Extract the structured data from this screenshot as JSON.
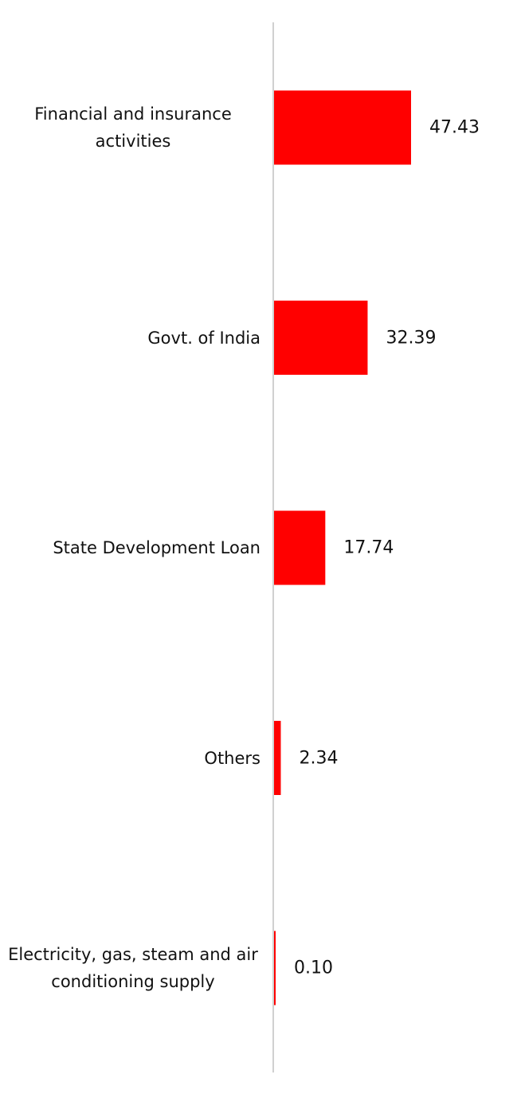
{
  "chart_data": {
    "type": "bar",
    "orientation": "horizontal",
    "categories": [
      "Financial and insurance activities",
      "Govt. of India",
      "State Development Loan",
      "Others",
      "Electricity, gas, steam and air conditioning supply"
    ],
    "values": [
      47.43,
      32.39,
      17.74,
      2.34,
      0.1
    ],
    "value_labels": [
      "47.43",
      "32.39",
      "17.74",
      "2.34",
      "0.10"
    ],
    "color": "#ff0000"
  }
}
